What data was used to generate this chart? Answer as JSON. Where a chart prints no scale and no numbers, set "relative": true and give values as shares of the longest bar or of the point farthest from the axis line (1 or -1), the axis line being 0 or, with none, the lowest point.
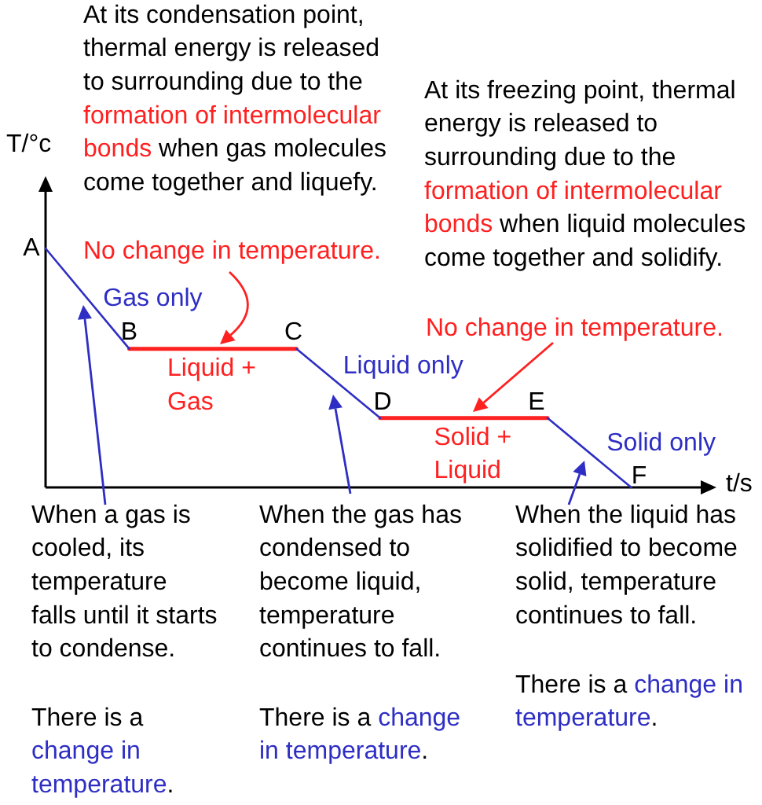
{
  "chart_data": {
    "type": "line",
    "relative": true,
    "xlabel": "t/s",
    "ylabel": "T/°c",
    "marker": "none",
    "line_style": "solid",
    "categories": [
      null,
      null,
      null,
      null,
      null,
      null,
      null,
      null,
      null
    ],
    "series": [
      {
        "color": "#2e2ec4",
        "values": [
          1,
          0.58,
          null,
          0.58,
          0.29,
          null,
          0.29,
          0,
          null
        ]
      },
      {
        "color": "#ff2020",
        "values": [
          null,
          0.58,
          0.58,
          0.58,
          null,
          null,
          null,
          null,
          null
        ]
      },
      {
        "color": "#ff2020",
        "values": [
          null,
          null,
          null,
          null,
          0.29,
          0.29,
          0.29,
          null,
          null
        ]
      }
    ],
    "annotations": [
      "At its condensation point, thermal energy is released to surrounding due to the formation of intermolecular bonds when gas molecules come together and liquefy.",
      "At its freezing point, thermal energy is released to surrounding due to the formation of intermolecular bonds when liquid molecules come together and solidify.",
      "No change in temperature.",
      "No change in temperature.",
      "When a gas is cooled, its temperature falls until it starts to condense.",
      "There is a change in temperature.",
      "When the gas has condensed to become liquid, temperature continues to fall.",
      "There is a change in temperature.",
      "When the liquid has solidified to become solid, temperature continues to fall.",
      "There is a change in temperature.",
      "Gas only",
      "Liquid + Gas",
      "Liquid only",
      "Solid + Liquid",
      "Solid only",
      "A",
      {
        "text": "B",
        "y": 0.58
      },
      {
        "text": "C",
        "y": 0.58
      },
      {
        "text": "D",
        "y": 0.29
      },
      {
        "text": "E",
        "y": 0.29
      },
      {
        "text": "F",
        "y": 0
      }
    ]
  }
}
